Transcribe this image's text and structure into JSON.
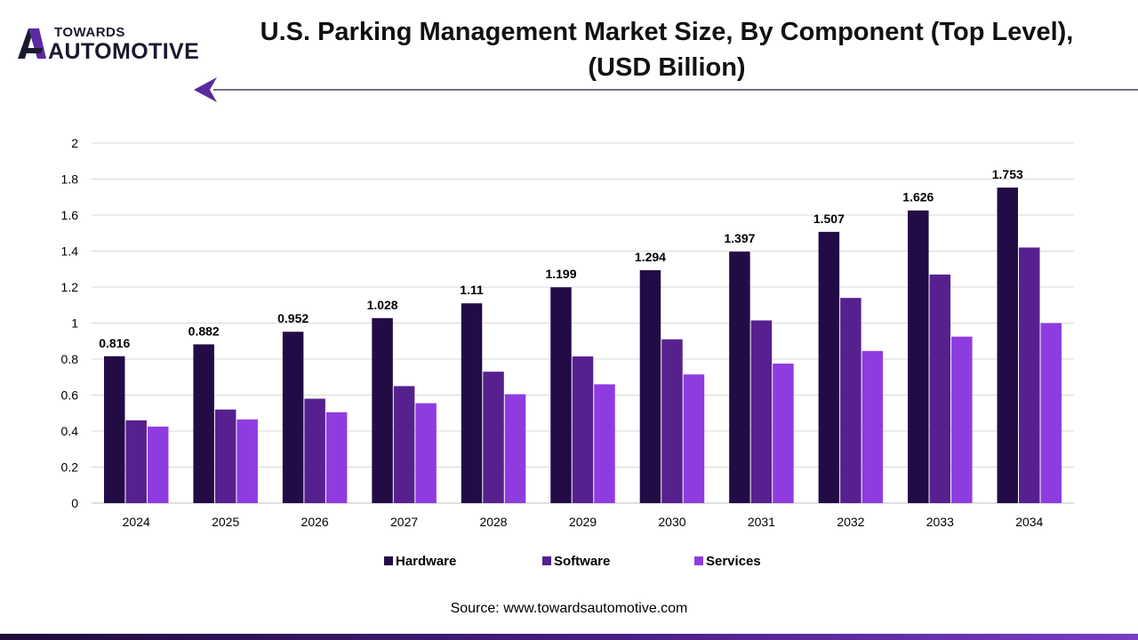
{
  "brand": {
    "line1": "TOWARDS",
    "line2": "AUTOMOTIVE",
    "accent_color": "#5b2aa0"
  },
  "chart_data": {
    "type": "bar",
    "title_line1": "U.S. Parking Management Market Size, By Component (Top Level),",
    "title_line2": "(USD Billion)",
    "categories": [
      "2024",
      "2025",
      "2026",
      "2027",
      "2028",
      "2029",
      "2030",
      "2031",
      "2032",
      "2033",
      "2034"
    ],
    "series": [
      {
        "name": "Hardware",
        "color": "#230c46",
        "values": [
          0.816,
          0.882,
          0.952,
          1.028,
          1.11,
          1.199,
          1.294,
          1.397,
          1.507,
          1.626,
          1.753
        ],
        "labels": [
          "0.816",
          "0.882",
          "0.952",
          "1.028",
          "1.11",
          "1.199",
          "1.294",
          "1.397",
          "1.507",
          "1.626",
          "1.753"
        ]
      },
      {
        "name": "Software",
        "color": "#57208f",
        "values": [
          0.46,
          0.52,
          0.58,
          0.65,
          0.73,
          0.815,
          0.91,
          1.015,
          1.14,
          1.27,
          1.42
        ]
      },
      {
        "name": "Services",
        "color": "#8e3ce0",
        "values": [
          0.425,
          0.465,
          0.505,
          0.555,
          0.605,
          0.66,
          0.715,
          0.775,
          0.845,
          0.925,
          1.0
        ]
      }
    ],
    "yticks": [
      "0",
      "0.2",
      "0.4",
      "0.6",
      "0.8",
      "1",
      "1.2",
      "1.4",
      "1.6",
      "1.8",
      "2"
    ],
    "ylim": [
      0,
      2
    ],
    "xlabel": "",
    "ylabel": "",
    "grid": true,
    "legend_position": "bottom"
  },
  "source": "Source: www.towardsautomotive.com"
}
